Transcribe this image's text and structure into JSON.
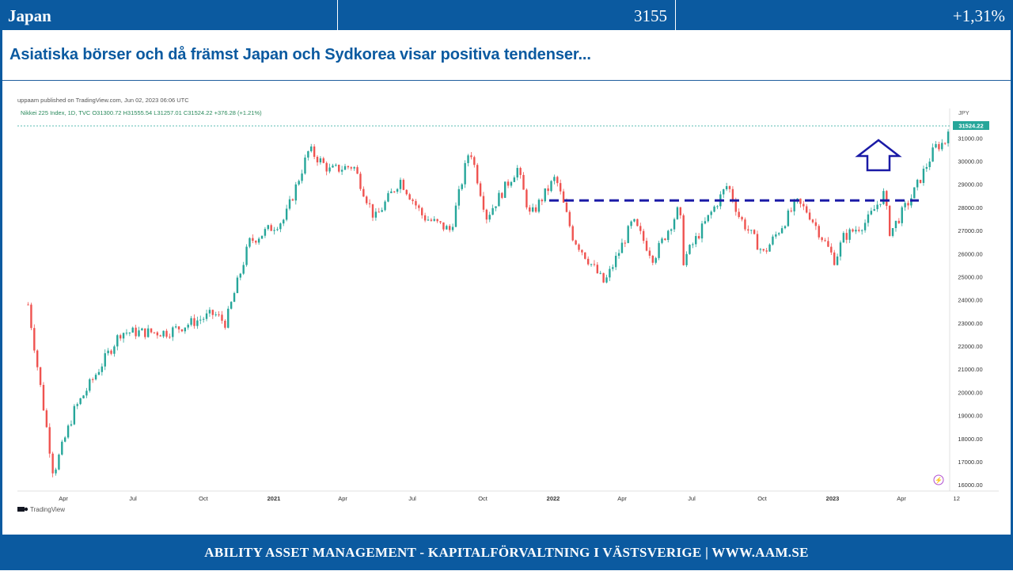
{
  "header": {
    "market": "Japan",
    "index_value": "3155",
    "change": "+1,31%"
  },
  "headline": "Asiatiska börser och då främst Japan och Sydkorea visar positiva tendenser...",
  "footer": {
    "text": "ABILITY ASSET MANAGEMENT -  KAPITALFÖRVALTNING I VÄSTSVERIGE   |   WWW.AAM.SE"
  },
  "colors": {
    "brand_blue": "#0b5aa0",
    "up_candle": "#26a69a",
    "down_candle": "#ef5350",
    "resistance_line": "#1a1aa6",
    "arrow": "#1a1aa6"
  },
  "tradingview": {
    "published": "uppaam published on TradingView.com, Jun 02, 2023 06:06 UTC",
    "ohlc_line": "Nikkei 225 Index, 1D, TVC  O31300.72  H31555.54  L31257.01  C31524.22  +376.28 (+1.21%)",
    "currency": "JPY",
    "last_price": "31524.22",
    "logo_text": "TradingView"
  },
  "chart_data": {
    "type": "line",
    "title": "Nikkei 225 Index, 1D, TVC",
    "currency": "JPY",
    "ylim": [
      15800,
      31800
    ],
    "y_ticks": [
      16000,
      17000,
      18000,
      19000,
      20000,
      21000,
      22000,
      23000,
      24000,
      25000,
      26000,
      27000,
      28000,
      29000,
      30000,
      31000
    ],
    "x_tick_labels": [
      "Apr",
      "Jul",
      "Oct",
      "2021",
      "Apr",
      "Jul",
      "Oct",
      "2022",
      "Apr",
      "Jul",
      "Oct",
      "2023",
      "Apr",
      "12"
    ],
    "ohlc_last": {
      "open": 31300.72,
      "high": 31555.54,
      "low": 31257.01,
      "close": 31524.22,
      "change": 376.28,
      "change_pct": 1.21
    },
    "resistance_level": 28300,
    "series": [
      {
        "x": [
          "2020-02",
          "2020-03-19",
          "2020-04-15",
          "2020-06",
          "2020-08",
          "2020-10",
          "2020-10-30",
          "2020-11-30",
          "2021-01",
          "2021-02-16",
          "2021-03",
          "2021-04",
          "2021-05-13",
          "2021-06-15",
          "2021-07",
          "2021-08-20",
          "2021-09-14",
          "2021-10-06",
          "2021-11",
          "2021-12-02",
          "2022-01-04",
          "2022-01-27",
          "2022-03-09",
          "2022-04",
          "2022-05-12",
          "2022-06",
          "2022-06-20",
          "2022-08-17",
          "2022-09-01",
          "2022-10-03",
          "2022-11",
          "2022-11-30",
          "2023-01-04",
          "2023-01",
          "2023-02",
          "2023-03-09",
          "2023-03-17",
          "2023-04",
          "2023-05",
          "2023-05-31",
          "2023-06-01"
        ],
        "values": [
          23800,
          16500,
          19200,
          22600,
          22600,
          23400,
          23000,
          26500,
          27500,
          30500,
          29600,
          29800,
          27500,
          29200,
          27600,
          27000,
          30600,
          27600,
          29700,
          27600,
          29300,
          26700,
          24700,
          27400,
          25800,
          28000,
          25700,
          29000,
          27600,
          26000,
          28200,
          27800,
          25700,
          26700,
          27400,
          28600,
          26900,
          28500,
          30600,
          30900,
          31524
        ]
      }
    ]
  }
}
